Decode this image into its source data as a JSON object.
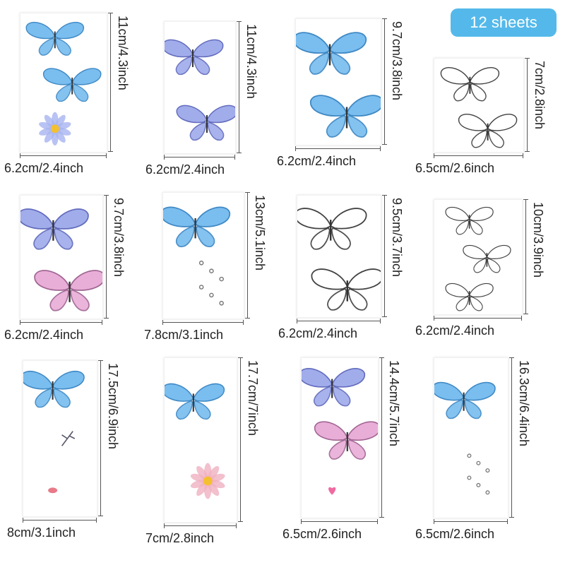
{
  "badge": {
    "text": "12 sheets",
    "color": "#54b9ea"
  },
  "sheets": [
    {
      "width_label": "6.2cm/2.4inch",
      "height_label": "11cm/4.3inch",
      "design": [
        "blue-butterfly",
        "blue-butterfly",
        "daisy-flower"
      ]
    },
    {
      "width_label": "6.2cm/2.4inch",
      "height_label": "11cm/4.3inch",
      "design": [
        "large-purple-butterfly",
        "large-purple-butterfly"
      ]
    },
    {
      "width_label": "6.2cm/2.4inch",
      "height_label": "9.7cm/3.8inch",
      "design": [
        "blue-butterfly",
        "blue-butterfly"
      ]
    },
    {
      "width_label": "6.5cm/2.6inch",
      "height_label": "7cm/2.8inch",
      "design": [
        "black-outline-butterfly",
        "black-outline-butterfly"
      ]
    },
    {
      "width_label": "6.2cm/2.4inch",
      "height_label": "9.7cm/3.8inch",
      "design": [
        "purple-butterfly",
        "pink-butterfly"
      ]
    },
    {
      "width_label": "7.8cm/3.1inch",
      "height_label": "13cm/5.1inch",
      "design": [
        "blue-butterfly",
        "sparkle-dots"
      ]
    },
    {
      "width_label": "6.2cm/2.4inch",
      "height_label": "9.5cm/3.7inch",
      "design": [
        "black-outline-butterfly",
        "black-outline-butterfly"
      ]
    },
    {
      "width_label": "6.2cm/2.4inch",
      "height_label": "10cm/3.9inch",
      "design": [
        "black-outline-butterfly",
        "black-outline-butterfly",
        "black-outline-butterfly"
      ]
    },
    {
      "width_label": "8cm/3.1inch",
      "height_label": "17.5cm/6.9inch",
      "design": [
        "small-blue-butterflies",
        "leaves",
        "pink-petal"
      ]
    },
    {
      "width_label": "7cm/2.8inch",
      "height_label": "17.7cm/7inch",
      "design": [
        "small-blue-butterflies",
        "pink-flower"
      ]
    },
    {
      "width_label": "6.5cm/2.6inch",
      "height_label": "14.4cm/5.7inch",
      "design": [
        "purple-butterflies",
        "pink-butterfly",
        "colored-hearts"
      ]
    },
    {
      "width_label": "6.5cm/2.6inch",
      "height_label": "16.3cm/6.4inch",
      "design": [
        "large-blue-butterfly",
        "sparkle-dots"
      ]
    }
  ]
}
